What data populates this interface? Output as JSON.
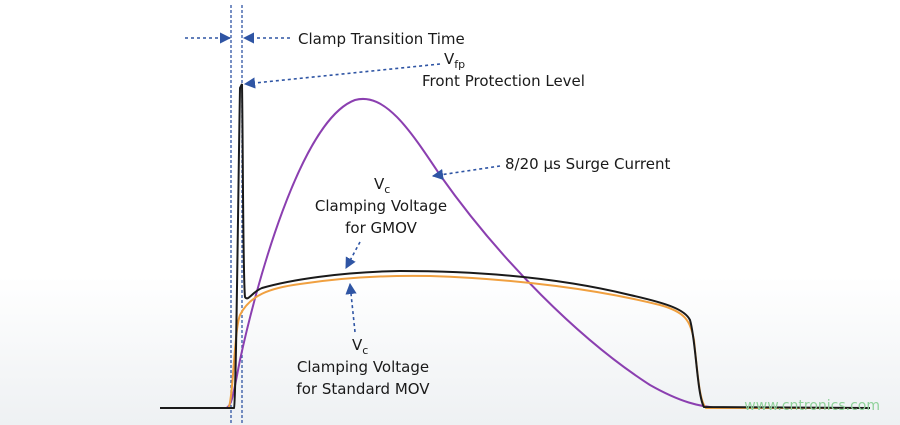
{
  "labels": {
    "clamp_transition": "Clamp Transition Time",
    "vfp": {
      "symbol": "V",
      "subscript": "fp",
      "caption": "Front Protection Level"
    },
    "surge": "8/20 µs Surge Current",
    "gmov": {
      "symbol": "V",
      "subscript": "c",
      "lines": [
        "Clamping Voltage",
        "for GMOV"
      ]
    },
    "mov": {
      "symbol": "V",
      "subscript": "c",
      "lines": [
        "Clamping Voltage",
        "for Standard MOV"
      ]
    }
  },
  "watermark": "www.cntronics.com"
}
